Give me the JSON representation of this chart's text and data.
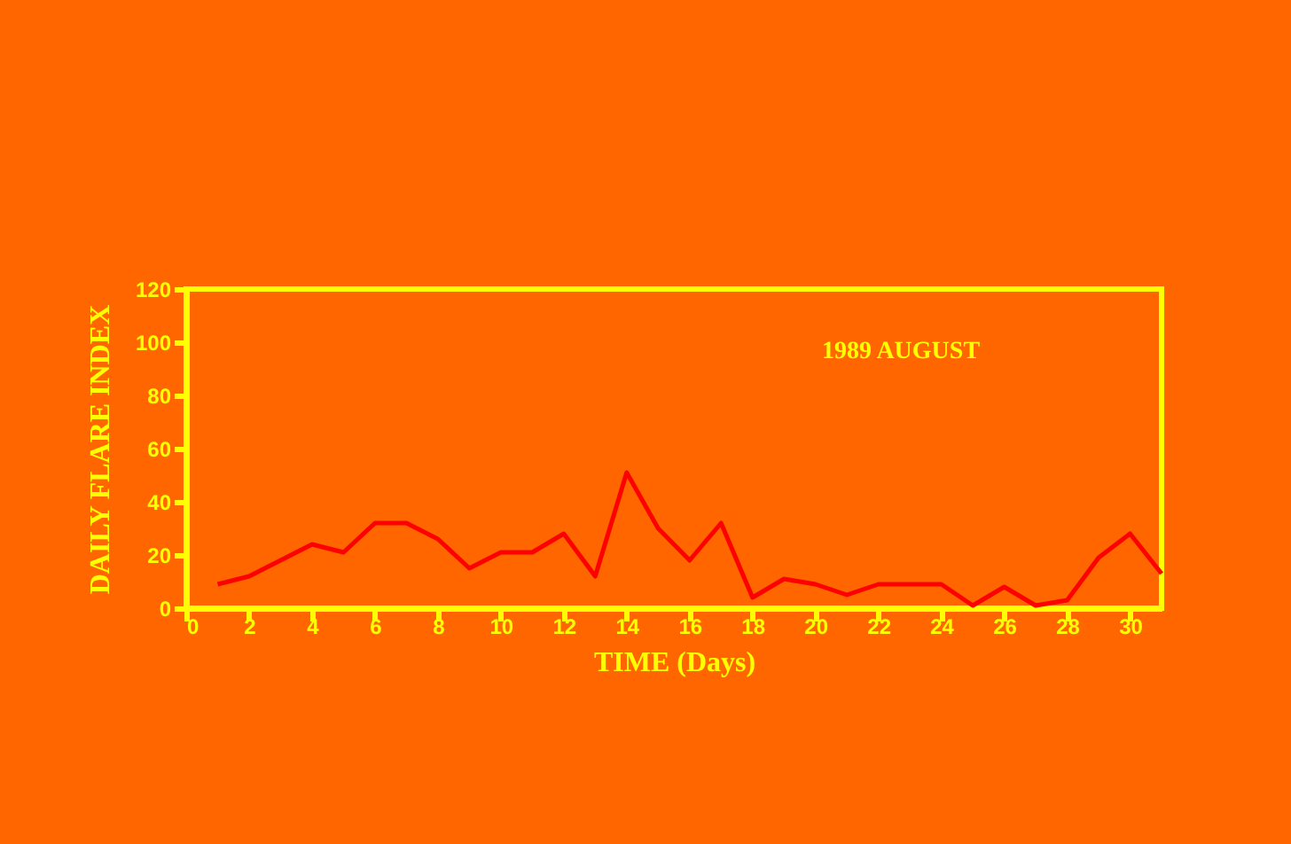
{
  "chart_data": {
    "type": "line",
    "xlabel": "TIME (Days)",
    "ylabel": "DAILY FLARE INDEX",
    "annotations": [
      "1989  AUGUST"
    ],
    "x": [
      1,
      2,
      3,
      4,
      5,
      6,
      7,
      8,
      9,
      10,
      11,
      12,
      13,
      14,
      15,
      16,
      17,
      18,
      19,
      20,
      21,
      22,
      23,
      24,
      25,
      26,
      27,
      28,
      29,
      30,
      31
    ],
    "series": [
      {
        "color": "#ff0000",
        "values": [
          9,
          12,
          18,
          24,
          21,
          32,
          32,
          26,
          15,
          21,
          21,
          28,
          12,
          51,
          30,
          18,
          32,
          4,
          11,
          9,
          5,
          9,
          9,
          9,
          1,
          8,
          1,
          3,
          19,
          28,
          13
        ]
      }
    ],
    "xlim": [
      0,
      31
    ],
    "xticks": [
      0,
      2,
      4,
      6,
      8,
      10,
      12,
      14,
      16,
      18,
      20,
      22,
      24,
      26,
      28,
      30
    ],
    "ylim": [
      0,
      120
    ],
    "yticks": [
      0,
      20,
      40,
      60,
      80,
      100,
      120
    ],
    "grid": false,
    "marker": "none",
    "line_style": "solid"
  }
}
